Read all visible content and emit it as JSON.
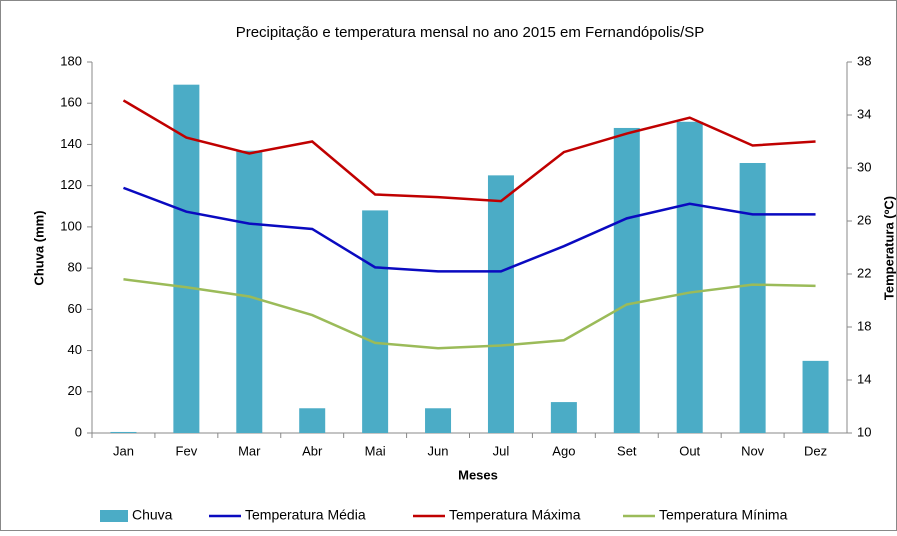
{
  "chart_data": {
    "type": "bar-line",
    "title": "Precipitação e temperatura mensal no ano 2015 em Fernandópolis/SP",
    "x_label": "Meses",
    "y_label": "Chuva (mm)",
    "y2_label": "Temperatura (ºC)",
    "categories": [
      "Jan",
      "Fev",
      "Mar",
      "Abr",
      "Mai",
      "Jun",
      "Jul",
      "Ago",
      "Set",
      "Out",
      "Nov",
      "Dez"
    ],
    "series": [
      {
        "name": "Chuva",
        "type": "bar",
        "color": "#4bacc6",
        "values": [
          0.5,
          169,
          137,
          12,
          108,
          12,
          125,
          15,
          148,
          151,
          131,
          35
        ]
      },
      {
        "name": "Temperatura Média",
        "type": "line",
        "axis": "y2",
        "color": "#0a0ac0",
        "values": [
          28.5,
          26.7,
          25.8,
          25.4,
          22.5,
          22.2,
          22.2,
          24.1,
          26.2,
          27.3,
          26.5,
          26.5
        ]
      },
      {
        "name": "Temperatura Máxima",
        "type": "line",
        "axis": "y2",
        "color": "#c00000",
        "values": [
          35.1,
          32.3,
          31.1,
          32.0,
          28.0,
          27.8,
          27.5,
          31.2,
          32.6,
          33.8,
          31.7,
          32.0
        ]
      },
      {
        "name": "Temperatura Mínima",
        "type": "line",
        "axis": "y2",
        "color": "#9bbb59",
        "values": [
          21.6,
          21.0,
          20.3,
          18.9,
          16.8,
          16.4,
          16.6,
          17.0,
          19.7,
          20.6,
          21.2,
          21.1
        ]
      }
    ],
    "ylim": [
      0,
      180
    ],
    "yticks": [
      0,
      20,
      40,
      60,
      80,
      100,
      120,
      140,
      160,
      180
    ],
    "y2lim": [
      10,
      38
    ],
    "y2ticks": [
      10,
      14,
      18,
      22,
      26,
      30,
      34,
      38
    ],
    "legend": "bottom"
  }
}
